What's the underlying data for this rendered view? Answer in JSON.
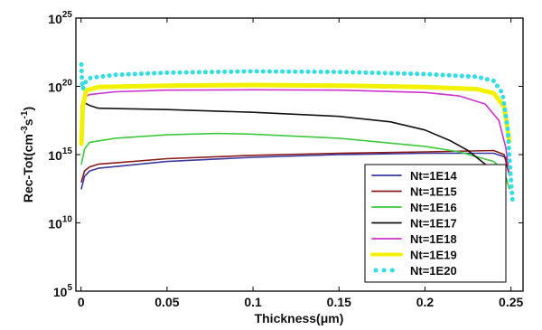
{
  "chart_data": {
    "type": "line",
    "title": "",
    "xlabel": "Thickness(μm)",
    "ylabel_base": "Rec-Tot(cm",
    "ylabel_exp1": "-3",
    "ylabel_mid": "s",
    "ylabel_exp2": "-1",
    "ylabel_end": ")",
    "xlim": [
      -0.003,
      0.257
    ],
    "ylim_exponent": [
      5,
      25
    ],
    "y_scale": "log",
    "grid": false,
    "legend_position": "lower-right",
    "x_ticks": [
      {
        "v": 0,
        "label": "0"
      },
      {
        "v": 0.05,
        "label": "0.05"
      },
      {
        "v": 0.1,
        "label": "0.1"
      },
      {
        "v": 0.15,
        "label": "0.15"
      },
      {
        "v": 0.2,
        "label": "0.2"
      },
      {
        "v": 0.25,
        "label": "0.25"
      }
    ],
    "y_ticks": [
      {
        "e": 5,
        "base": "10",
        "exp": "5"
      },
      {
        "e": 10,
        "base": "10",
        "exp": "10"
      },
      {
        "e": 15,
        "base": "10",
        "exp": "15"
      },
      {
        "e": 20,
        "base": "10",
        "exp": "20"
      },
      {
        "e": 25,
        "base": "10",
        "exp": "25"
      }
    ],
    "series": [
      {
        "name": "Nt=1E14",
        "color": "#3a3aa0",
        "style": "solid",
        "points": [
          [
            0.0002,
            12.5
          ],
          [
            0.002,
            13.4
          ],
          [
            0.005,
            13.8
          ],
          [
            0.01,
            14.0
          ],
          [
            0.05,
            14.5
          ],
          [
            0.1,
            14.8
          ],
          [
            0.15,
            15.0
          ],
          [
            0.2,
            15.1
          ],
          [
            0.24,
            15.1
          ],
          [
            0.247,
            14.8
          ],
          [
            0.249,
            13.5
          ]
        ]
      },
      {
        "name": "Nt=1E15",
        "color": "#8b1a1a",
        "style": "solid",
        "points": [
          [
            0.0002,
            13.0
          ],
          [
            0.002,
            13.8
          ],
          [
            0.005,
            14.1
          ],
          [
            0.01,
            14.3
          ],
          [
            0.05,
            14.7
          ],
          [
            0.1,
            14.95
          ],
          [
            0.15,
            15.1
          ],
          [
            0.2,
            15.2
          ],
          [
            0.24,
            15.3
          ],
          [
            0.246,
            15.0
          ],
          [
            0.249,
            13.5
          ]
        ]
      },
      {
        "name": "Nt=1E16",
        "color": "#3ec83e",
        "style": "solid",
        "points": [
          [
            0.0002,
            14.3
          ],
          [
            0.002,
            15.4
          ],
          [
            0.005,
            15.9
          ],
          [
            0.02,
            16.2
          ],
          [
            0.05,
            16.45
          ],
          [
            0.08,
            16.55
          ],
          [
            0.1,
            16.5
          ],
          [
            0.15,
            16.2
          ],
          [
            0.2,
            15.6
          ],
          [
            0.22,
            15.2
          ],
          [
            0.24,
            14.5
          ],
          [
            0.246,
            13.8
          ],
          [
            0.249,
            12.5
          ]
        ]
      },
      {
        "name": "Nt=1E17",
        "color": "#111111",
        "style": "solid",
        "points": [
          [
            0.0002,
            18.6
          ],
          [
            0.002,
            18.8
          ],
          [
            0.005,
            18.6
          ],
          [
            0.01,
            18.4
          ],
          [
            0.05,
            18.3
          ],
          [
            0.1,
            18.1
          ],
          [
            0.15,
            17.8
          ],
          [
            0.18,
            17.4
          ],
          [
            0.2,
            16.8
          ],
          [
            0.215,
            16.0
          ],
          [
            0.225,
            15.3
          ],
          [
            0.235,
            14.3
          ],
          [
            0.24,
            13.3
          ]
        ]
      },
      {
        "name": "Nt=1E18",
        "color": "#cc33cc",
        "style": "solid",
        "points": [
          [
            0.0002,
            18.5
          ],
          [
            0.002,
            19.2
          ],
          [
            0.005,
            19.4
          ],
          [
            0.02,
            19.6
          ],
          [
            0.05,
            19.72
          ],
          [
            0.1,
            19.75
          ],
          [
            0.15,
            19.72
          ],
          [
            0.2,
            19.55
          ],
          [
            0.22,
            19.3
          ],
          [
            0.235,
            18.7
          ],
          [
            0.243,
            17.5
          ],
          [
            0.247,
            15.5
          ],
          [
            0.249,
            13.5
          ]
        ]
      },
      {
        "name": "Nt=1E19",
        "color": "#f2f200",
        "style": "thick",
        "points": [
          [
            0.0002,
            15.8
          ],
          [
            0.001,
            18.5
          ],
          [
            0.003,
            19.7
          ],
          [
            0.01,
            19.95
          ],
          [
            0.05,
            20.05
          ],
          [
            0.1,
            20.1
          ],
          [
            0.15,
            20.05
          ],
          [
            0.2,
            19.95
          ],
          [
            0.23,
            19.8
          ],
          [
            0.24,
            19.5
          ],
          [
            0.246,
            18.5
          ],
          [
            0.249,
            16.0
          ]
        ]
      },
      {
        "name": "Nt=1E20",
        "color": "#33dde0",
        "style": "dotted",
        "points": [
          [
            0.0002,
            21.6
          ],
          [
            0.0005,
            20.5
          ],
          [
            0.001,
            19.8
          ],
          [
            0.003,
            20.4
          ],
          [
            0.005,
            20.6
          ],
          [
            0.02,
            20.85
          ],
          [
            0.05,
            21.0
          ],
          [
            0.1,
            21.1
          ],
          [
            0.15,
            21.05
          ],
          [
            0.2,
            20.9
          ],
          [
            0.23,
            20.7
          ],
          [
            0.24,
            20.4
          ],
          [
            0.245,
            19.5
          ],
          [
            0.248,
            17.0
          ],
          [
            0.25,
            13.0
          ],
          [
            0.251,
            11.5
          ]
        ]
      }
    ]
  }
}
